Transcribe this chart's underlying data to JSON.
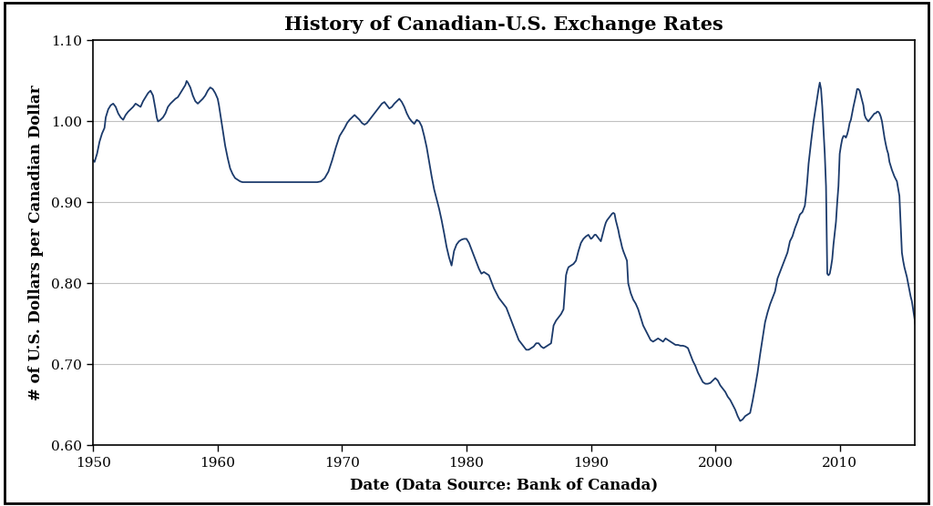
{
  "title": "History of Canadian-U.S. Exchange Rates",
  "xlabel": "Date (Data Source: Bank of Canada)",
  "ylabel": "# of U.S. Dollars per Canadian Dollar",
  "xlim": [
    1950,
    2016
  ],
  "ylim": [
    0.6,
    1.1
  ],
  "yticks": [
    0.6,
    0.7,
    0.8,
    0.9,
    1.0,
    1.1
  ],
  "xticks": [
    1950,
    1960,
    1970,
    1980,
    1990,
    2000,
    2010
  ],
  "line_color": "#1B3A6B",
  "line_width": 1.3,
  "background_color": "#FFFFFF",
  "title_fontsize": 15,
  "label_fontsize": 12,
  "tick_fontsize": 11,
  "grid_color": "#C0C0C0",
  "series": [
    [
      1950.0,
      0.952
    ],
    [
      1950.1,
      0.95
    ],
    [
      1950.2,
      0.955
    ],
    [
      1950.3,
      0.96
    ],
    [
      1950.5,
      0.975
    ],
    [
      1950.7,
      0.985
    ],
    [
      1950.9,
      0.992
    ],
    [
      1951.0,
      1.005
    ],
    [
      1951.2,
      1.015
    ],
    [
      1951.4,
      1.02
    ],
    [
      1951.6,
      1.022
    ],
    [
      1951.8,
      1.018
    ],
    [
      1952.0,
      1.01
    ],
    [
      1952.2,
      1.005
    ],
    [
      1952.4,
      1.002
    ],
    [
      1952.6,
      1.008
    ],
    [
      1952.8,
      1.012
    ],
    [
      1953.0,
      1.015
    ],
    [
      1953.2,
      1.018
    ],
    [
      1953.4,
      1.022
    ],
    [
      1953.6,
      1.02
    ],
    [
      1953.8,
      1.018
    ],
    [
      1954.0,
      1.025
    ],
    [
      1954.2,
      1.03
    ],
    [
      1954.4,
      1.035
    ],
    [
      1954.6,
      1.038
    ],
    [
      1954.8,
      1.032
    ],
    [
      1955.0,
      1.015
    ],
    [
      1955.1,
      1.005
    ],
    [
      1955.2,
      1.0
    ],
    [
      1955.4,
      1.002
    ],
    [
      1955.6,
      1.005
    ],
    [
      1955.8,
      1.01
    ],
    [
      1956.0,
      1.018
    ],
    [
      1956.2,
      1.022
    ],
    [
      1956.4,
      1.025
    ],
    [
      1956.6,
      1.028
    ],
    [
      1956.8,
      1.03
    ],
    [
      1957.0,
      1.035
    ],
    [
      1957.2,
      1.04
    ],
    [
      1957.4,
      1.045
    ],
    [
      1957.5,
      1.05
    ],
    [
      1957.6,
      1.048
    ],
    [
      1957.8,
      1.042
    ],
    [
      1958.0,
      1.032
    ],
    [
      1958.2,
      1.025
    ],
    [
      1958.4,
      1.022
    ],
    [
      1958.6,
      1.025
    ],
    [
      1958.8,
      1.028
    ],
    [
      1959.0,
      1.032
    ],
    [
      1959.2,
      1.038
    ],
    [
      1959.4,
      1.042
    ],
    [
      1959.6,
      1.04
    ],
    [
      1959.8,
      1.035
    ],
    [
      1960.0,
      1.028
    ],
    [
      1960.1,
      1.02
    ],
    [
      1960.2,
      1.01
    ],
    [
      1960.4,
      0.99
    ],
    [
      1960.6,
      0.97
    ],
    [
      1960.8,
      0.955
    ],
    [
      1961.0,
      0.942
    ],
    [
      1961.2,
      0.935
    ],
    [
      1961.4,
      0.93
    ],
    [
      1961.6,
      0.928
    ],
    [
      1961.8,
      0.926
    ],
    [
      1962.0,
      0.925
    ],
    [
      1962.5,
      0.925
    ],
    [
      1963.0,
      0.925
    ],
    [
      1963.5,
      0.925
    ],
    [
      1964.0,
      0.925
    ],
    [
      1964.5,
      0.925
    ],
    [
      1965.0,
      0.925
    ],
    [
      1965.5,
      0.925
    ],
    [
      1966.0,
      0.925
    ],
    [
      1966.5,
      0.925
    ],
    [
      1967.0,
      0.925
    ],
    [
      1967.5,
      0.925
    ],
    [
      1968.0,
      0.925
    ],
    [
      1968.3,
      0.926
    ],
    [
      1968.6,
      0.93
    ],
    [
      1968.9,
      0.938
    ],
    [
      1969.2,
      0.952
    ],
    [
      1969.5,
      0.968
    ],
    [
      1969.8,
      0.982
    ],
    [
      1970.0,
      0.987
    ],
    [
      1970.2,
      0.992
    ],
    [
      1970.4,
      0.998
    ],
    [
      1970.6,
      1.002
    ],
    [
      1970.8,
      1.005
    ],
    [
      1971.0,
      1.008
    ],
    [
      1971.2,
      1.005
    ],
    [
      1971.4,
      1.002
    ],
    [
      1971.6,
      0.998
    ],
    [
      1971.8,
      0.996
    ],
    [
      1972.0,
      0.998
    ],
    [
      1972.2,
      1.002
    ],
    [
      1972.4,
      1.006
    ],
    [
      1972.6,
      1.01
    ],
    [
      1972.8,
      1.014
    ],
    [
      1973.0,
      1.018
    ],
    [
      1973.2,
      1.022
    ],
    [
      1973.4,
      1.024
    ],
    [
      1973.6,
      1.02
    ],
    [
      1973.8,
      1.016
    ],
    [
      1974.0,
      1.018
    ],
    [
      1974.2,
      1.022
    ],
    [
      1974.4,
      1.025
    ],
    [
      1974.6,
      1.028
    ],
    [
      1974.8,
      1.024
    ],
    [
      1975.0,
      1.018
    ],
    [
      1975.2,
      1.01
    ],
    [
      1975.4,
      1.004
    ],
    [
      1975.6,
      1.0
    ],
    [
      1975.8,
      0.997
    ],
    [
      1976.0,
      1.002
    ],
    [
      1976.2,
      1.0
    ],
    [
      1976.4,
      0.994
    ],
    [
      1976.6,
      0.982
    ],
    [
      1976.8,
      0.968
    ],
    [
      1977.0,
      0.95
    ],
    [
      1977.2,
      0.932
    ],
    [
      1977.4,
      0.916
    ],
    [
      1977.6,
      0.904
    ],
    [
      1977.8,
      0.892
    ],
    [
      1978.0,
      0.878
    ],
    [
      1978.2,
      0.862
    ],
    [
      1978.4,
      0.845
    ],
    [
      1978.6,
      0.832
    ],
    [
      1978.8,
      0.822
    ],
    [
      1979.0,
      0.84
    ],
    [
      1979.2,
      0.848
    ],
    [
      1979.4,
      0.852
    ],
    [
      1979.6,
      0.854
    ],
    [
      1979.8,
      0.855
    ],
    [
      1980.0,
      0.855
    ],
    [
      1980.2,
      0.85
    ],
    [
      1980.4,
      0.842
    ],
    [
      1980.6,
      0.834
    ],
    [
      1980.8,
      0.826
    ],
    [
      1981.0,
      0.818
    ],
    [
      1981.2,
      0.812
    ],
    [
      1981.4,
      0.814
    ],
    [
      1981.6,
      0.812
    ],
    [
      1981.8,
      0.81
    ],
    [
      1982.0,
      0.802
    ],
    [
      1982.2,
      0.794
    ],
    [
      1982.4,
      0.788
    ],
    [
      1982.6,
      0.782
    ],
    [
      1982.8,
      0.778
    ],
    [
      1983.0,
      0.774
    ],
    [
      1983.2,
      0.77
    ],
    [
      1983.4,
      0.762
    ],
    [
      1983.6,
      0.754
    ],
    [
      1983.8,
      0.746
    ],
    [
      1984.0,
      0.738
    ],
    [
      1984.2,
      0.73
    ],
    [
      1984.4,
      0.726
    ],
    [
      1984.6,
      0.722
    ],
    [
      1984.8,
      0.718
    ],
    [
      1985.0,
      0.718
    ],
    [
      1985.2,
      0.72
    ],
    [
      1985.4,
      0.722
    ],
    [
      1985.6,
      0.726
    ],
    [
      1985.8,
      0.726
    ],
    [
      1986.0,
      0.722
    ],
    [
      1986.2,
      0.72
    ],
    [
      1986.4,
      0.722
    ],
    [
      1986.6,
      0.724
    ],
    [
      1986.8,
      0.726
    ],
    [
      1987.0,
      0.748
    ],
    [
      1987.2,
      0.754
    ],
    [
      1987.4,
      0.758
    ],
    [
      1987.6,
      0.762
    ],
    [
      1987.8,
      0.768
    ],
    [
      1988.0,
      0.81
    ],
    [
      1988.1,
      0.816
    ],
    [
      1988.2,
      0.82
    ],
    [
      1988.4,
      0.822
    ],
    [
      1988.6,
      0.824
    ],
    [
      1988.8,
      0.828
    ],
    [
      1989.0,
      0.84
    ],
    [
      1989.2,
      0.85
    ],
    [
      1989.4,
      0.855
    ],
    [
      1989.6,
      0.858
    ],
    [
      1989.8,
      0.86
    ],
    [
      1990.0,
      0.855
    ],
    [
      1990.1,
      0.856
    ],
    [
      1990.2,
      0.858
    ],
    [
      1990.3,
      0.86
    ],
    [
      1990.4,
      0.86
    ],
    [
      1990.5,
      0.858
    ],
    [
      1990.6,
      0.856
    ],
    [
      1990.8,
      0.852
    ],
    [
      1991.0,
      0.864
    ],
    [
      1991.1,
      0.87
    ],
    [
      1991.2,
      0.875
    ],
    [
      1991.3,
      0.878
    ],
    [
      1991.4,
      0.88
    ],
    [
      1991.5,
      0.882
    ],
    [
      1991.6,
      0.884
    ],
    [
      1991.7,
      0.886
    ],
    [
      1991.8,
      0.887
    ],
    [
      1991.9,
      0.886
    ],
    [
      1992.0,
      0.878
    ],
    [
      1992.1,
      0.872
    ],
    [
      1992.2,
      0.866
    ],
    [
      1992.3,
      0.858
    ],
    [
      1992.4,
      0.852
    ],
    [
      1992.5,
      0.845
    ],
    [
      1992.6,
      0.84
    ],
    [
      1992.7,
      0.836
    ],
    [
      1992.8,
      0.832
    ],
    [
      1992.9,
      0.828
    ],
    [
      1993.0,
      0.8
    ],
    [
      1993.2,
      0.788
    ],
    [
      1993.4,
      0.78
    ],
    [
      1993.6,
      0.775
    ],
    [
      1993.8,
      0.768
    ],
    [
      1994.0,
      0.758
    ],
    [
      1994.2,
      0.748
    ],
    [
      1994.4,
      0.742
    ],
    [
      1994.6,
      0.736
    ],
    [
      1994.8,
      0.73
    ],
    [
      1995.0,
      0.728
    ],
    [
      1995.2,
      0.73
    ],
    [
      1995.4,
      0.732
    ],
    [
      1995.6,
      0.73
    ],
    [
      1995.8,
      0.728
    ],
    [
      1996.0,
      0.732
    ],
    [
      1996.2,
      0.73
    ],
    [
      1996.4,
      0.728
    ],
    [
      1996.6,
      0.726
    ],
    [
      1996.8,
      0.724
    ],
    [
      1997.0,
      0.724
    ],
    [
      1997.2,
      0.723
    ],
    [
      1997.4,
      0.723
    ],
    [
      1997.6,
      0.722
    ],
    [
      1997.8,
      0.72
    ],
    [
      1998.0,
      0.712
    ],
    [
      1998.2,
      0.704
    ],
    [
      1998.4,
      0.698
    ],
    [
      1998.6,
      0.69
    ],
    [
      1998.8,
      0.684
    ],
    [
      1999.0,
      0.678
    ],
    [
      1999.2,
      0.676
    ],
    [
      1999.4,
      0.676
    ],
    [
      1999.6,
      0.677
    ],
    [
      1999.8,
      0.68
    ],
    [
      2000.0,
      0.683
    ],
    [
      2000.2,
      0.68
    ],
    [
      2000.4,
      0.674
    ],
    [
      2000.6,
      0.67
    ],
    [
      2000.8,
      0.666
    ],
    [
      2001.0,
      0.66
    ],
    [
      2001.2,
      0.656
    ],
    [
      2001.4,
      0.65
    ],
    [
      2001.6,
      0.644
    ],
    [
      2001.8,
      0.636
    ],
    [
      2002.0,
      0.63
    ],
    [
      2002.2,
      0.632
    ],
    [
      2002.4,
      0.636
    ],
    [
      2002.6,
      0.638
    ],
    [
      2002.8,
      0.64
    ],
    [
      2003.0,
      0.655
    ],
    [
      2003.2,
      0.672
    ],
    [
      2003.4,
      0.69
    ],
    [
      2003.6,
      0.712
    ],
    [
      2003.8,
      0.732
    ],
    [
      2004.0,
      0.752
    ],
    [
      2004.2,
      0.764
    ],
    [
      2004.4,
      0.774
    ],
    [
      2004.6,
      0.782
    ],
    [
      2004.8,
      0.79
    ],
    [
      2005.0,
      0.806
    ],
    [
      2005.2,
      0.814
    ],
    [
      2005.4,
      0.822
    ],
    [
      2005.6,
      0.83
    ],
    [
      2005.8,
      0.838
    ],
    [
      2006.0,
      0.852
    ],
    [
      2006.2,
      0.858
    ],
    [
      2006.4,
      0.868
    ],
    [
      2006.6,
      0.876
    ],
    [
      2006.8,
      0.885
    ],
    [
      2007.0,
      0.888
    ],
    [
      2007.2,
      0.896
    ],
    [
      2007.3,
      0.91
    ],
    [
      2007.4,
      0.928
    ],
    [
      2007.5,
      0.948
    ],
    [
      2007.6,
      0.962
    ],
    [
      2007.7,
      0.975
    ],
    [
      2007.8,
      0.988
    ],
    [
      2007.9,
      1.0
    ],
    [
      2008.0,
      1.01
    ],
    [
      2008.1,
      1.02
    ],
    [
      2008.2,
      1.03
    ],
    [
      2008.3,
      1.04
    ],
    [
      2008.4,
      1.048
    ],
    [
      2008.5,
      1.04
    ],
    [
      2008.6,
      1.018
    ],
    [
      2008.7,
      0.99
    ],
    [
      2008.8,
      0.96
    ],
    [
      2008.9,
      0.92
    ],
    [
      2009.0,
      0.812
    ],
    [
      2009.1,
      0.81
    ],
    [
      2009.2,
      0.812
    ],
    [
      2009.3,
      0.82
    ],
    [
      2009.4,
      0.83
    ],
    [
      2009.5,
      0.848
    ],
    [
      2009.6,
      0.862
    ],
    [
      2009.7,
      0.876
    ],
    [
      2009.8,
      0.9
    ],
    [
      2009.9,
      0.92
    ],
    [
      2010.0,
      0.96
    ],
    [
      2010.1,
      0.97
    ],
    [
      2010.2,
      0.978
    ],
    [
      2010.3,
      0.982
    ],
    [
      2010.4,
      0.982
    ],
    [
      2010.5,
      0.98
    ],
    [
      2010.6,
      0.984
    ],
    [
      2010.7,
      0.99
    ],
    [
      2010.8,
      0.998
    ],
    [
      2010.9,
      1.002
    ],
    [
      2011.0,
      1.01
    ],
    [
      2011.1,
      1.018
    ],
    [
      2011.2,
      1.025
    ],
    [
      2011.3,
      1.032
    ],
    [
      2011.4,
      1.04
    ],
    [
      2011.5,
      1.04
    ],
    [
      2011.6,
      1.038
    ],
    [
      2011.7,
      1.032
    ],
    [
      2011.8,
      1.026
    ],
    [
      2011.9,
      1.02
    ],
    [
      2012.0,
      1.008
    ],
    [
      2012.1,
      1.004
    ],
    [
      2012.2,
      1.002
    ],
    [
      2012.3,
      1.0
    ],
    [
      2012.4,
      1.002
    ],
    [
      2012.5,
      1.004
    ],
    [
      2012.6,
      1.006
    ],
    [
      2012.7,
      1.008
    ],
    [
      2012.8,
      1.01
    ],
    [
      2012.9,
      1.01
    ],
    [
      2013.0,
      1.012
    ],
    [
      2013.1,
      1.012
    ],
    [
      2013.2,
      1.01
    ],
    [
      2013.3,
      1.006
    ],
    [
      2013.4,
      1.0
    ],
    [
      2013.5,
      0.99
    ],
    [
      2013.6,
      0.98
    ],
    [
      2013.7,
      0.972
    ],
    [
      2013.8,
      0.965
    ],
    [
      2013.9,
      0.96
    ],
    [
      2014.0,
      0.95
    ],
    [
      2014.2,
      0.94
    ],
    [
      2014.4,
      0.932
    ],
    [
      2014.6,
      0.926
    ],
    [
      2014.8,
      0.908
    ],
    [
      2015.0,
      0.838
    ],
    [
      2015.1,
      0.828
    ],
    [
      2015.2,
      0.82
    ],
    [
      2015.3,
      0.814
    ],
    [
      2015.4,
      0.808
    ],
    [
      2015.5,
      0.8
    ],
    [
      2015.6,
      0.792
    ],
    [
      2015.7,
      0.784
    ],
    [
      2015.8,
      0.778
    ],
    [
      2015.9,
      0.768
    ],
    [
      2016.0,
      0.758
    ],
    [
      2016.1,
      0.748
    ],
    [
      2016.2,
      0.74
    ],
    [
      2016.3,
      0.73
    ],
    [
      2016.4,
      0.72
    ]
  ]
}
